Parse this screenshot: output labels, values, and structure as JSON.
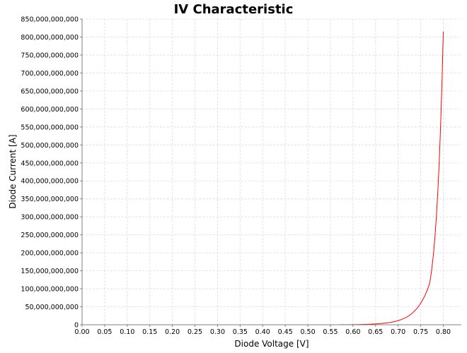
{
  "chart_data": {
    "type": "line",
    "title": "IV Characteristic",
    "xlabel": "Diode Voltage [V]",
    "ylabel": "Diode Current [A]",
    "xlim": [
      0,
      0.84
    ],
    "ylim": [
      0,
      850000000000
    ],
    "x_ticks": [
      0.0,
      0.05,
      0.1,
      0.15,
      0.2,
      0.25,
      0.3,
      0.35,
      0.4,
      0.45,
      0.5,
      0.55,
      0.6,
      0.65,
      0.7,
      0.75,
      0.8
    ],
    "x_tick_labels": [
      "0.00",
      "0.05",
      "0.10",
      "0.15",
      "0.20",
      "0.25",
      "0.30",
      "0.35",
      "0.40",
      "0.45",
      "0.50",
      "0.55",
      "0.60",
      "0.65",
      "0.70",
      "0.75",
      "0.80"
    ],
    "y_ticks": [
      0,
      50000000000,
      100000000000,
      150000000000,
      200000000000,
      250000000000,
      300000000000,
      350000000000,
      400000000000,
      450000000000,
      500000000000,
      550000000000,
      600000000000,
      650000000000,
      700000000000,
      750000000000,
      800000000000,
      850000000000
    ],
    "y_tick_labels": [
      "0",
      "50,000,000,000",
      "100,000,000,000",
      "150,000,000,000",
      "200,000,000,000",
      "250,000,000,000",
      "300,000,000,000",
      "350,000,000,000",
      "400,000,000,000",
      "450,000,000,000",
      "500,000,000,000",
      "550,000,000,000",
      "600,000,000,000",
      "650,000,000,000",
      "700,000,000,000",
      "750,000,000,000",
      "800,000,000,000",
      "850,000,000,000"
    ],
    "grid": true,
    "legend": "none",
    "series": [
      {
        "color": "#ff0000",
        "x": [
          0.0,
          0.1,
          0.2,
          0.3,
          0.4,
          0.5,
          0.55,
          0.6,
          0.62,
          0.64,
          0.66,
          0.68,
          0.7,
          0.71,
          0.72,
          0.73,
          0.74,
          0.75,
          0.76,
          0.77,
          0.78,
          0.79,
          0.8
        ],
        "y": [
          0,
          0,
          0,
          0,
          0,
          5000000,
          60000000,
          400000000,
          900000000,
          1700000000,
          3200000000,
          6000000000,
          11500000000,
          16000000000,
          22000000000,
          31000000000,
          43000000000,
          60000000000,
          83000000000,
          116000000000,
          221000000000,
          425000000000,
          815000000000
        ]
      }
    ]
  }
}
